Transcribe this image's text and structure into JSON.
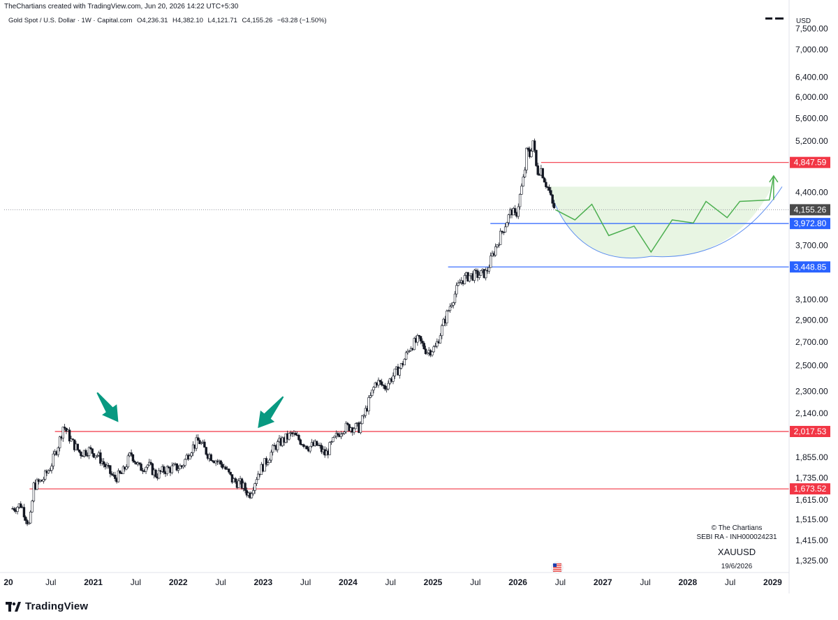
{
  "header": {
    "created_by": "TheChartians created with TradingView.com, Jun 20, 2026 14:22 UTC+5:30",
    "symbol": "Gold Spot / U.S. Dollar · 1W · Capital.com",
    "open": "O4,236.31",
    "high": "H4,382.10",
    "low": "L4,121.71",
    "close": "C4,155.26",
    "change": "−63.28 (−1.50%)"
  },
  "currency": "USD",
  "watermark": {
    "copyright": "© The Chartians",
    "sebi": "SEBI RA - INH000024231",
    "ticker": "XAUUSD",
    "date": "19/6/2026"
  },
  "footer": {
    "brand": "TradingView"
  },
  "colors": {
    "red_line": "#f23645",
    "blue_line": "#2962ff",
    "green_path": "#4caf50",
    "cup_fill": "#e8f5e3",
    "arrow_teal": "#089981",
    "current_tag": "#4a4a4a"
  },
  "chart_data": {
    "type": "line",
    "scale": "log",
    "ylim": [
      1280,
      7900
    ],
    "y_ticks": [
      "7,500.00",
      "7,000.00",
      "6,400.00",
      "6,000.00",
      "5,600.00",
      "5,200.00",
      "4,400.00",
      "3,700.00",
      "3,100.00",
      "2,900.00",
      "2,700.00",
      "2,500.00",
      "2,300.00",
      "2,140.00",
      "1,855.00",
      "1,735.00",
      "1,615.00",
      "1,515.00",
      "1,415.00",
      "1,325.00"
    ],
    "x_ticks": [
      {
        "label": "20",
        "bold": true
      },
      {
        "label": "Jul",
        "bold": false
      },
      {
        "label": "2021",
        "bold": true
      },
      {
        "label": "Jul",
        "bold": false
      },
      {
        "label": "2022",
        "bold": true
      },
      {
        "label": "Jul",
        "bold": false
      },
      {
        "label": "2023",
        "bold": true
      },
      {
        "label": "Jul",
        "bold": false
      },
      {
        "label": "2024",
        "bold": true
      },
      {
        "label": "Jul",
        "bold": false
      },
      {
        "label": "2025",
        "bold": true
      },
      {
        "label": "Jul",
        "bold": false
      },
      {
        "label": "2026",
        "bold": true
      },
      {
        "label": "Jul",
        "bold": false
      },
      {
        "label": "2027",
        "bold": true
      },
      {
        "label": "Jul",
        "bold": false
      },
      {
        "label": "2028",
        "bold": true
      },
      {
        "label": "Jul",
        "bold": false
      },
      {
        "label": "2029",
        "bold": true
      }
    ],
    "price_path": [
      [
        2020.0,
        1570
      ],
      [
        2020.1,
        1590
      ],
      [
        2020.2,
        1480
      ],
      [
        2020.25,
        1690
      ],
      [
        2020.35,
        1720
      ],
      [
        2020.45,
        1800
      ],
      [
        2020.55,
        1950
      ],
      [
        2020.6,
        2060
      ],
      [
        2020.7,
        1950
      ],
      [
        2020.8,
        1880
      ],
      [
        2020.9,
        1900
      ],
      [
        2021.0,
        1870
      ],
      [
        2021.1,
        1800
      ],
      [
        2021.2,
        1730
      ],
      [
        2021.3,
        1760
      ],
      [
        2021.4,
        1880
      ],
      [
        2021.5,
        1790
      ],
      [
        2021.6,
        1810
      ],
      [
        2021.7,
        1750
      ],
      [
        2021.8,
        1780
      ],
      [
        2021.9,
        1790
      ],
      [
        2022.0,
        1800
      ],
      [
        2022.1,
        1900
      ],
      [
        2022.2,
        1960
      ],
      [
        2022.3,
        1880
      ],
      [
        2022.4,
        1840
      ],
      [
        2022.5,
        1800
      ],
      [
        2022.6,
        1720
      ],
      [
        2022.7,
        1700
      ],
      [
        2022.8,
        1640
      ],
      [
        2022.9,
        1760
      ],
      [
        2023.0,
        1830
      ],
      [
        2023.1,
        1920
      ],
      [
        2023.2,
        1960
      ],
      [
        2023.3,
        2000
      ],
      [
        2023.4,
        1960
      ],
      [
        2023.5,
        1920
      ],
      [
        2023.6,
        1930
      ],
      [
        2023.7,
        1870
      ],
      [
        2023.8,
        1960
      ],
      [
        2023.9,
        2040
      ],
      [
        2024.0,
        2050
      ],
      [
        2024.1,
        2040
      ],
      [
        2024.2,
        2200
      ],
      [
        2024.3,
        2380
      ],
      [
        2024.4,
        2330
      ],
      [
        2024.5,
        2420
      ],
      [
        2024.6,
        2500
      ],
      [
        2024.7,
        2660
      ],
      [
        2024.8,
        2720
      ],
      [
        2024.9,
        2620
      ],
      [
        2025.0,
        2650
      ],
      [
        2025.1,
        2880
      ],
      [
        2025.2,
        3100
      ],
      [
        2025.3,
        3300
      ],
      [
        2025.4,
        3350
      ],
      [
        2025.5,
        3360
      ],
      [
        2025.6,
        3380
      ],
      [
        2025.7,
        3650
      ],
      [
        2025.8,
        3900
      ],
      [
        2025.9,
        4150
      ],
      [
        2025.95,
        4050
      ],
      [
        2026.0,
        4350
      ],
      [
        2026.05,
        4650
      ],
      [
        2026.08,
        5050
      ],
      [
        2026.12,
        4950
      ],
      [
        2026.15,
        5250
      ],
      [
        2026.2,
        4700
      ],
      [
        2026.25,
        4750
      ],
      [
        2026.3,
        4550
      ],
      [
        2026.35,
        4400
      ],
      [
        2026.38,
        4230
      ],
      [
        2026.42,
        4155
      ]
    ],
    "forecast_path": [
      [
        2026.42,
        4155
      ],
      [
        2026.65,
        4020
      ],
      [
        2026.85,
        4230
      ],
      [
        2027.05,
        3820
      ],
      [
        2027.35,
        3940
      ],
      [
        2027.55,
        3620
      ],
      [
        2027.8,
        4020
      ],
      [
        2028.05,
        3980
      ],
      [
        2028.2,
        4270
      ],
      [
        2028.45,
        4050
      ],
      [
        2028.6,
        4270
      ],
      [
        2028.95,
        4290
      ],
      [
        2029.0,
        4640
      ]
    ],
    "cup_curve": {
      "start": [
        2026.35,
        4420
      ],
      "bottom": [
        2027.55,
        3570
      ],
      "end": [
        2029.1,
        4480
      ]
    },
    "levels": [
      {
        "value": 4847.59,
        "label": "4,847.59",
        "color": "#f23645",
        "from": 2026.25
      },
      {
        "value": 4155.26,
        "label": "4,155.26",
        "color": "#4a4a4a",
        "from": 2019.9,
        "dotted": true
      },
      {
        "value": 3972.8,
        "label": "3,972.80",
        "color": "#2962ff",
        "from": 2025.65
      },
      {
        "value": 3448.85,
        "label": "3,448.85",
        "color": "#2962ff",
        "from": 2025.15
      },
      {
        "value": 2017.53,
        "label": "2,017.53",
        "color": "#f23645",
        "from": 2020.5
      },
      {
        "value": 1673.52,
        "label": "1,673.52",
        "color": "#f23645",
        "from": 2020.2
      }
    ],
    "arrows": [
      {
        "from": [
          2021.0,
          2290
        ],
        "to": [
          2021.25,
          2080
        ]
      },
      {
        "from": [
          2023.2,
          2260
        ],
        "to": [
          2022.9,
          2040
        ]
      }
    ]
  }
}
